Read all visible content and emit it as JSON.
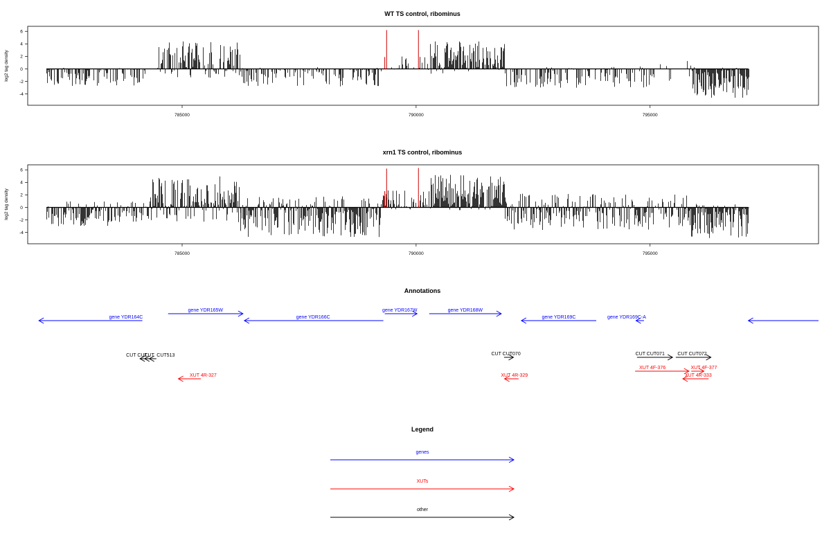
{
  "colors": {
    "genes": "#0000ff",
    "xuts": "#ff0000",
    "other": "#000000",
    "highlight": "#cc0000"
  },
  "chart_data": [
    {
      "id": "wt",
      "type": "bar",
      "title": "WT TS control, ribominus",
      "ylabel": "log2 tag density",
      "xlim": [
        781700,
        798600
      ],
      "ylim": [
        -5.8,
        6.8
      ],
      "yticks": [
        -4,
        -2,
        0,
        2,
        4,
        6
      ],
      "xticks": [
        785000,
        790000,
        795000
      ],
      "xtick_labels": [
        "785000",
        "790000",
        "795000"
      ],
      "data_range": [
        782100,
        797100
      ],
      "highlights": [
        {
          "x": 789370,
          "y": 6.2
        },
        {
          "x": 790050,
          "y": 6.2
        },
        {
          "x": 789330,
          "y": 1.9
        }
      ],
      "segments": [
        {
          "from": 782100,
          "to": 784200,
          "min": -2.8,
          "max": 0.2,
          "density": 0.55
        },
        {
          "from": 784200,
          "to": 784450,
          "min": -0.6,
          "max": 0.2,
          "density": 0.2
        },
        {
          "from": 784450,
          "to": 786250,
          "min": -1.6,
          "max": 4.4,
          "density": 0.85
        },
        {
          "from": 786250,
          "to": 789250,
          "min": -2.8,
          "max": 0.3,
          "density": 0.5
        },
        {
          "from": 789250,
          "to": 790300,
          "min": -0.4,
          "max": 2.0,
          "density": 0.35
        },
        {
          "from": 790300,
          "to": 791900,
          "min": -0.8,
          "max": 4.4,
          "density": 0.85
        },
        {
          "from": 791900,
          "to": 795000,
          "min": -3.0,
          "max": 0.4,
          "density": 0.45
        },
        {
          "from": 795000,
          "to": 795900,
          "min": -2.2,
          "max": 1.6,
          "density": 0.25
        },
        {
          "from": 795900,
          "to": 797100,
          "min": -4.6,
          "max": 0.3,
          "density": 0.95
        }
      ]
    },
    {
      "id": "xrn1",
      "type": "bar",
      "title": "xrn1 TS control, ribominus",
      "ylabel": "log2 tag density",
      "xlim": [
        781700,
        798600
      ],
      "ylim": [
        -5.8,
        6.8
      ],
      "yticks": [
        -4,
        -2,
        0,
        2,
        4,
        6
      ],
      "xticks": [
        785000,
        790000,
        795000
      ],
      "xtick_labels": [
        "785000",
        "790000",
        "795000"
      ],
      "data_range": [
        782100,
        797100
      ],
      "highlights": [
        {
          "x": 789370,
          "y": 6.2
        },
        {
          "x": 790050,
          "y": 6.3
        },
        {
          "x": 789330,
          "y": 2.6
        }
      ],
      "segments": [
        {
          "from": 782100,
          "to": 784300,
          "min": -3.2,
          "max": 1.0,
          "density": 0.85
        },
        {
          "from": 784300,
          "to": 786250,
          "min": -2.4,
          "max": 5.0,
          "density": 0.95
        },
        {
          "from": 786250,
          "to": 789250,
          "min": -4.8,
          "max": 1.8,
          "density": 0.95
        },
        {
          "from": 789250,
          "to": 790300,
          "min": -0.6,
          "max": 3.0,
          "density": 0.7
        },
        {
          "from": 790300,
          "to": 791900,
          "min": -0.6,
          "max": 5.2,
          "density": 0.95
        },
        {
          "from": 791900,
          "to": 795800,
          "min": -3.6,
          "max": 2.2,
          "density": 0.8
        },
        {
          "from": 795800,
          "to": 797100,
          "min": -5.0,
          "max": 0.6,
          "density": 0.98
        }
      ]
    }
  ],
  "annotations": {
    "title": "Annotations",
    "items": [
      {
        "name": "gene YDR164C",
        "kind": "gene",
        "dir": -1,
        "from": 781940,
        "to": 784150,
        "row": 1,
        "label_at": 783800
      },
      {
        "name": "gene YDR165W",
        "kind": "gene",
        "dir": 1,
        "from": 784700,
        "to": 786300,
        "row": 0,
        "label_at": 785500
      },
      {
        "name": "gene YDR166C",
        "kind": "gene",
        "dir": -1,
        "from": 786330,
        "to": 789300,
        "row": 1,
        "label_at": 787800
      },
      {
        "name": "gene YDR167W",
        "kind": "gene",
        "dir": 1,
        "from": 789330,
        "to": 790020,
        "row": 0,
        "label_at": 789650
      },
      {
        "name": "gene YDR168W",
        "kind": "gene",
        "dir": 1,
        "from": 790280,
        "to": 791820,
        "row": 0,
        "label_at": 791050
      },
      {
        "name": "gene YDR169C",
        "kind": "gene",
        "dir": -1,
        "from": 792250,
        "to": 793850,
        "row": 1,
        "label_at": 793050
      },
      {
        "name": "gene YDR169C-A",
        "kind": "gene",
        "dir": -1,
        "from": 794700,
        "to": 794870,
        "row": 1,
        "label_at": 794500
      },
      {
        "name": "",
        "kind": "gene",
        "dir": -1,
        "from": 797100,
        "to": 798600,
        "row": 1,
        "label_at": 797800
      },
      {
        "name": "CUT CUT",
        "kind": "other",
        "dir": -1,
        "from": 784100,
        "to": 784330,
        "row": 2,
        "label_at": 784030
      },
      {
        "name": "CUT",
        "kind": "other",
        "dir": -1,
        "from": 784200,
        "to": 784380,
        "row": 2,
        "label_at": 784300
      },
      {
        "name": "CUT513",
        "kind": "other",
        "dir": -1,
        "from": 784300,
        "to": 784450,
        "row": 2,
        "label_at": 784650
      },
      {
        "name": "CUT CUT070",
        "kind": "other",
        "dir": 1,
        "from": 791880,
        "to": 792080,
        "row": 3,
        "label_at": 791920
      },
      {
        "name": "CUT CUT071",
        "kind": "other",
        "dir": 1,
        "from": 794720,
        "to": 795480,
        "row": 3,
        "label_at": 795000
      },
      {
        "name": "CUT CUT072",
        "kind": "other",
        "dir": 1,
        "from": 795550,
        "to": 796300,
        "row": 3,
        "label_at": 795900
      },
      {
        "name": "XUT 4R-327",
        "kind": "xut",
        "dir": -1,
        "from": 784920,
        "to": 785400,
        "row": 5,
        "label_at": 785450
      },
      {
        "name": "XUT 4R-329",
        "kind": "xut",
        "dir": -1,
        "from": 791890,
        "to": 792190,
        "row": 5,
        "label_at": 792100
      },
      {
        "name": "XUT 4F-376",
        "kind": "xut",
        "dir": 1,
        "from": 794680,
        "to": 795830,
        "row": 4,
        "label_at": 795050
      },
      {
        "name": "XUT 4F-377",
        "kind": "xut",
        "dir": 1,
        "from": 795880,
        "to": 796150,
        "row": 4,
        "label_at": 796150
      },
      {
        "name": "XUT 4R-333",
        "kind": "xut",
        "dir": -1,
        "from": 795700,
        "to": 796250,
        "row": 5,
        "label_at": 796030
      }
    ]
  },
  "legend": {
    "title": "Legend",
    "entries": [
      {
        "label": "genes",
        "kind": "gene"
      },
      {
        "label": "XUTs",
        "kind": "xut"
      },
      {
        "label": "other",
        "kind": "other"
      }
    ]
  }
}
